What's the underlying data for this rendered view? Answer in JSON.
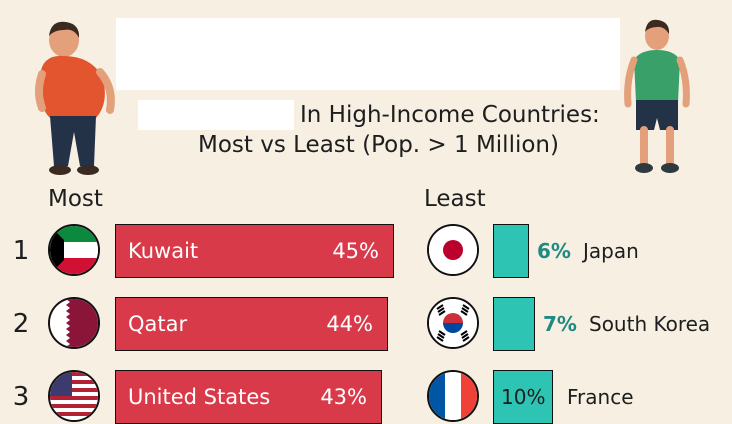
{
  "title": {
    "line1": "In High-Income Countries:",
    "line2": "Most vs Least (Pop. > 1 Million)"
  },
  "columns": {
    "most": "Most",
    "least": "Least"
  },
  "colors": {
    "most_bar": "#d93a49",
    "least_bar": "#2ec4b3",
    "least_text": "#1e8a80",
    "background": "#f6efe2"
  },
  "chart_data": [
    {
      "type": "bar",
      "title": "Most",
      "categories": [
        "Kuwait",
        "Qatar",
        "United States"
      ],
      "ranks": [
        "1",
        "2",
        "3"
      ],
      "values": [
        45,
        44,
        43
      ],
      "labels": [
        "45%",
        "44%",
        "43%"
      ],
      "flags": [
        "kuwait-flag-icon",
        "qatar-flag-icon",
        "usa-flag-icon"
      ],
      "xlabel": "",
      "ylabel": ""
    },
    {
      "type": "bar",
      "title": "Least",
      "categories": [
        "Japan",
        "South Korea",
        "France"
      ],
      "values": [
        6,
        7,
        10
      ],
      "labels": [
        "6%",
        "7%",
        "10%"
      ],
      "flags": [
        "japan-flag-icon",
        "south-korea-flag-icon",
        "france-flag-icon"
      ],
      "xlabel": "",
      "ylabel": ""
    }
  ]
}
